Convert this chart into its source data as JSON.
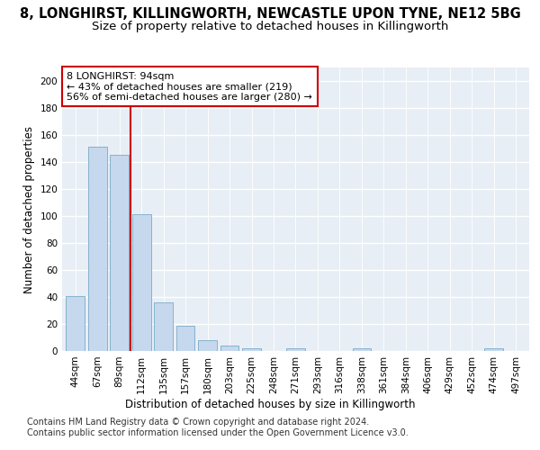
{
  "title_line1": "8, LONGHIRST, KILLINGWORTH, NEWCASTLE UPON TYNE, NE12 5BG",
  "title_line2": "Size of property relative to detached houses in Killingworth",
  "xlabel": "Distribution of detached houses by size in Killingworth",
  "ylabel": "Number of detached properties",
  "categories": [
    "44sqm",
    "67sqm",
    "89sqm",
    "112sqm",
    "135sqm",
    "157sqm",
    "180sqm",
    "203sqm",
    "225sqm",
    "248sqm",
    "271sqm",
    "293sqm",
    "316sqm",
    "338sqm",
    "361sqm",
    "384sqm",
    "406sqm",
    "429sqm",
    "452sqm",
    "474sqm",
    "497sqm"
  ],
  "values": [
    41,
    151,
    145,
    101,
    36,
    19,
    8,
    4,
    2,
    0,
    2,
    0,
    0,
    2,
    0,
    0,
    0,
    0,
    0,
    2,
    0
  ],
  "bar_color": "#c5d8ed",
  "bar_edge_color": "#7aaac8",
  "vline_color": "#cc0000",
  "vline_x_idx": 2,
  "annotation_text": "8 LONGHIRST: 94sqm\n← 43% of detached houses are smaller (219)\n56% of semi-detached houses are larger (280) →",
  "annotation_box_color": "#ffffff",
  "annotation_box_edge": "#cc0000",
  "ylim": [
    0,
    210
  ],
  "yticks": [
    0,
    20,
    40,
    60,
    80,
    100,
    120,
    140,
    160,
    180,
    200
  ],
  "bg_color": "#ffffff",
  "plot_bg_color": "#e8eef5",
  "grid_color": "#ffffff",
  "footer_line1": "Contains HM Land Registry data © Crown copyright and database right 2024.",
  "footer_line2": "Contains public sector information licensed under the Open Government Licence v3.0.",
  "title_fontsize": 10.5,
  "subtitle_fontsize": 9.5,
  "axis_label_fontsize": 8.5,
  "tick_fontsize": 7.5,
  "annotation_fontsize": 8,
  "footer_fontsize": 7
}
